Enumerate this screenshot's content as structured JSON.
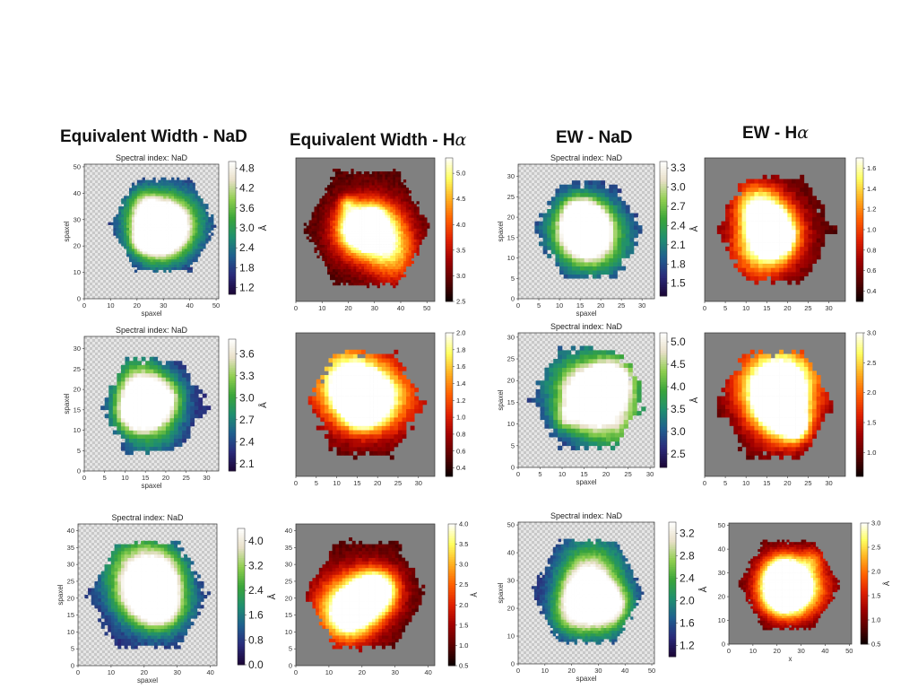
{
  "columns": [
    {
      "title": "Equivalent Width - NaD",
      "title_greek": ""
    },
    {
      "title": "Equivalent Width - H",
      "title_greek": "α"
    },
    {
      "title": "EW - NaD",
      "title_greek": ""
    },
    {
      "title": "EW - H",
      "title_greek": "α"
    }
  ],
  "colors": {
    "nad_colormap": [
      "#1a0535",
      "#2a2a7a",
      "#1f5f8f",
      "#1f8f6f",
      "#3aa53a",
      "#8fcf4f",
      "#e8e0c8",
      "#ffffff"
    ],
    "ha_colormap": [
      "#0a0000",
      "#5a0000",
      "#a00000",
      "#e02000",
      "#ff6000",
      "#ffb020",
      "#ffff60",
      "#ffffff"
    ],
    "background_gray": "#808080",
    "hatch_light": "#e6e6e6",
    "hatch_dark": "#c8c8c8"
  },
  "chart_data": [
    {
      "type": "heatmap",
      "id": "r1c1",
      "title": "Spectral index: NaD",
      "xlabel": "spaxel",
      "ylabel": "spaxel",
      "xlim": [
        0,
        51
      ],
      "ylim": [
        0,
        51
      ],
      "xticks": [
        0,
        10,
        20,
        30,
        40,
        50
      ],
      "yticks": [
        0,
        10,
        20,
        30,
        40,
        50
      ],
      "background": "hatch",
      "colormap": "nad",
      "colorbar": {
        "ticks": [
          "4.8",
          "4.2",
          "3.6",
          "3.0",
          "2.4",
          "1.8",
          "1.2"
        ],
        "range": [
          1.0,
          5.0
        ],
        "label": "Å"
      },
      "center": [
        30,
        28
      ],
      "radius": 20,
      "peak_value": 5.0
    },
    {
      "type": "heatmap",
      "id": "r1c2",
      "title": "",
      "xlabel": "",
      "ylabel": "",
      "xlim": [
        0,
        53
      ],
      "ylim": [
        0,
        53
      ],
      "xticks": [
        0,
        10,
        20,
        30,
        40,
        50
      ],
      "yticks": [],
      "background": "gray",
      "colormap": "ha",
      "colorbar": {
        "ticks": [
          "5.0",
          "4.5",
          "4.0",
          "3.5",
          "3.0",
          "2.5"
        ],
        "range": [
          2.5,
          5.3
        ],
        "label": ""
      },
      "center": [
        27,
        27
      ],
      "radius": 24,
      "peak_value": 5.2
    },
    {
      "type": "heatmap",
      "id": "r1c3",
      "title": "Spectral index: NaD",
      "xlabel": "spaxel",
      "ylabel": "spaxel",
      "xlim": [
        0,
        33
      ],
      "ylim": [
        0,
        33
      ],
      "xticks": [
        0,
        5,
        10,
        15,
        20,
        25,
        30
      ],
      "yticks": [
        0,
        5,
        10,
        15,
        20,
        25,
        30
      ],
      "background": "hatch",
      "colormap": "nad",
      "colorbar": {
        "ticks": [
          "3.3",
          "3.0",
          "2.7",
          "2.4",
          "2.1",
          "1.8",
          "1.5"
        ],
        "range": [
          1.3,
          3.4
        ],
        "label": "Å"
      },
      "center": [
        17,
        17
      ],
      "radius": 13,
      "peak_value": 3.4
    },
    {
      "type": "heatmap",
      "id": "r1c4",
      "title": "",
      "xlabel": "",
      "ylabel": "",
      "xlim": [
        0,
        34
      ],
      "ylim": [
        0,
        34
      ],
      "xticks": [
        0,
        5,
        10,
        15,
        20,
        25,
        30
      ],
      "yticks": [],
      "background": "gray",
      "colormap": "ha",
      "colorbar": {
        "ticks": [
          "1.6",
          "1.4",
          "1.2",
          "1.0",
          "0.8",
          "0.6",
          "0.4"
        ],
        "range": [
          0.3,
          1.7
        ],
        "label": ""
      },
      "center": [
        17,
        17
      ],
      "radius": 14,
      "peak_value": 1.6
    },
    {
      "type": "heatmap",
      "id": "r2c1",
      "title": "Spectral index: NaD",
      "xlabel": "spaxel",
      "ylabel": "spaxel",
      "xlim": [
        0,
        33
      ],
      "ylim": [
        0,
        33
      ],
      "xticks": [
        0,
        5,
        10,
        15,
        20,
        25,
        30
      ],
      "yticks": [
        0,
        5,
        10,
        15,
        20,
        25,
        30
      ],
      "background": "hatch",
      "colormap": "nad",
      "colorbar": {
        "ticks": [
          "3.6",
          "3.3",
          "3.0",
          "2.7",
          "2.4",
          "2.1"
        ],
        "range": [
          2.0,
          3.8
        ],
        "label": "Å"
      },
      "center": [
        17,
        16
      ],
      "radius": 13,
      "peak_value": 3.8
    },
    {
      "type": "heatmap",
      "id": "r2c2",
      "title": "",
      "xlabel": "",
      "ylabel": "",
      "xlim": [
        0,
        34
      ],
      "ylim": [
        0,
        34
      ],
      "xticks": [
        0,
        5,
        10,
        15,
        20,
        25,
        30
      ],
      "yticks": [],
      "background": "gray",
      "colormap": "ha",
      "colorbar": {
        "ticks": [
          "2.0",
          "1.8",
          "1.6",
          "1.4",
          "1.2",
          "1.0",
          "0.8",
          "0.6",
          "0.4"
        ],
        "range": [
          0.3,
          2.0
        ],
        "label": ""
      },
      "center": [
        17,
        17
      ],
      "radius": 14,
      "peak_value": 2.0
    },
    {
      "type": "heatmap",
      "id": "r2c3",
      "title": "Spectral index: NaD",
      "xlabel": "spaxel",
      "ylabel": "spaxel",
      "xlim": [
        0,
        31
      ],
      "ylim": [
        0,
        31
      ],
      "xticks": [
        0,
        5,
        10,
        15,
        20,
        25,
        30
      ],
      "yticks": [
        0,
        5,
        10,
        15,
        20,
        25,
        30
      ],
      "background": "hatch",
      "colormap": "nad",
      "colorbar": {
        "ticks": [
          "5.0",
          "4.5",
          "4.0",
          "3.5",
          "3.0",
          "2.5"
        ],
        "range": [
          2.2,
          5.2
        ],
        "label": "Å"
      },
      "center": [
        16,
        16
      ],
      "radius": 13,
      "peak_value": 5.2
    },
    {
      "type": "heatmap",
      "id": "r2c4",
      "title": "",
      "xlabel": "",
      "ylabel": "",
      "xlim": [
        0,
        34
      ],
      "ylim": [
        0,
        34
      ],
      "xticks": [
        0,
        5,
        10,
        15,
        20,
        25,
        30
      ],
      "yticks": [],
      "background": "gray",
      "colormap": "ha",
      "colorbar": {
        "ticks": [
          "3.0",
          "2.5",
          "2.0",
          "1.5",
          "1.0"
        ],
        "range": [
          0.6,
          3.0
        ],
        "label": ""
      },
      "center": [
        17,
        17
      ],
      "radius": 14,
      "peak_value": 3.0
    },
    {
      "type": "heatmap",
      "id": "r3c1",
      "title": "Spectral index: NaD",
      "xlabel": "spaxel",
      "ylabel": "spaxel",
      "xlim": [
        0,
        42
      ],
      "ylim": [
        0,
        42
      ],
      "xticks": [
        0,
        10,
        20,
        30,
        40
      ],
      "yticks": [
        0,
        5,
        10,
        15,
        20,
        25,
        30,
        35,
        40
      ],
      "background": "hatch",
      "colormap": "nad",
      "colorbar": {
        "ticks": [
          "4.0",
          "3.2",
          "2.4",
          "1.6",
          "0.8",
          "0.0"
        ],
        "range": [
          0.0,
          4.4
        ],
        "label": "Å"
      },
      "center": [
        21,
        21
      ],
      "radius": 18,
      "peak_value": 4.4
    },
    {
      "type": "heatmap",
      "id": "r3c2",
      "title": "",
      "xlabel": "",
      "ylabel": "",
      "xlim": [
        0,
        42
      ],
      "ylim": [
        0,
        42
      ],
      "xticks": [
        0,
        10,
        20,
        30,
        40
      ],
      "yticks": [
        0,
        5,
        10,
        15,
        20,
        25,
        30,
        35,
        40
      ],
      "background": "gray",
      "colormap": "ha",
      "colorbar": {
        "ticks": [
          "4.0",
          "3.5",
          "3.0",
          "2.5",
          "2.0",
          "1.5",
          "1.0",
          "0.5"
        ],
        "range": [
          0.5,
          4.0
        ],
        "label": "Å"
      },
      "center": [
        21,
        21
      ],
      "radius": 18,
      "peak_value": 4.0
    },
    {
      "type": "heatmap",
      "id": "r3c3",
      "title": "Spectral index: NaD",
      "xlabel": "spaxel",
      "ylabel": "spaxel",
      "xlim": [
        0,
        51
      ],
      "ylim": [
        0,
        51
      ],
      "xticks": [
        0,
        10,
        20,
        30,
        40,
        50
      ],
      "yticks": [
        0,
        10,
        20,
        30,
        40,
        50
      ],
      "background": "hatch",
      "colormap": "nad",
      "colorbar": {
        "ticks": [
          "3.2",
          "2.8",
          "2.4",
          "2.0",
          "1.6",
          "1.2"
        ],
        "range": [
          1.0,
          3.4
        ],
        "label": "Å"
      },
      "center": [
        26,
        26
      ],
      "radius": 21,
      "peak_value": 3.4
    },
    {
      "type": "heatmap",
      "id": "r3c4",
      "title": "",
      "xlabel": "x",
      "ylabel": "",
      "xlim": [
        0,
        51
      ],
      "ylim": [
        0,
        51
      ],
      "xticks": [
        0,
        10,
        20,
        30,
        40,
        50
      ],
      "yticks": [
        0,
        10,
        20,
        30,
        40,
        50
      ],
      "background": "gray",
      "colormap": "ha",
      "colorbar": {
        "ticks": [
          "3.0",
          "2.5",
          "2.0",
          "1.5",
          "1.0",
          "0.5"
        ],
        "range": [
          0.5,
          3.0
        ],
        "label": "Å"
      },
      "center": [
        25,
        25
      ],
      "radius": 21,
      "peak_value": 3.0
    }
  ]
}
